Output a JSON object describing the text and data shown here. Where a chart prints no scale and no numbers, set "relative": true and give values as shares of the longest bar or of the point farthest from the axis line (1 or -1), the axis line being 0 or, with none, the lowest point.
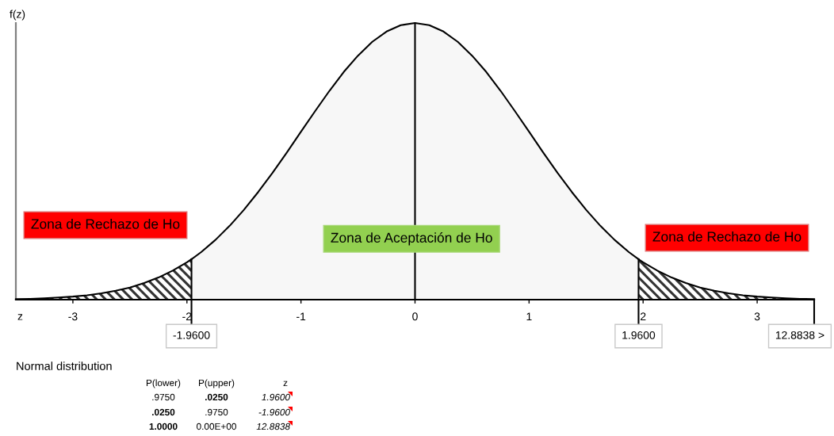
{
  "chart_data": [
    {
      "type": "area",
      "xlabel": "z",
      "ylabel": "f(z)",
      "relative": true,
      "xlim": [
        -3.5,
        3.5
      ],
      "xticks": [
        -3,
        -2,
        -1,
        0,
        1,
        2,
        3
      ],
      "series": [
        {
          "color": "#333333",
          "x": [
            -3.5,
            -3.375,
            -3.25,
            -3.125,
            -3,
            -2.875,
            -2.75,
            -2.625,
            -2.5,
            -2.375,
            -2.25,
            -2.125,
            -2,
            -1.96
          ],
          "values": [
            0.002,
            0.003,
            0.005,
            0.008,
            0.011,
            0.016,
            0.023,
            0.032,
            0.044,
            0.06,
            0.08,
            0.105,
            0.135,
            0.146
          ]
        },
        {
          "color": "#f7f7f7",
          "x": [
            -1.96,
            -1.875,
            -1.75,
            -1.625,
            -1.5,
            -1.375,
            -1.25,
            -1.125,
            -1,
            -0.875,
            -0.75,
            -0.625,
            -0.5,
            -0.375,
            -0.25,
            -0.125,
            0,
            0.125,
            0.25,
            0.375,
            0.5,
            0.625,
            0.75,
            0.875,
            1,
            1.125,
            1.25,
            1.375,
            1.5,
            1.625,
            1.75,
            1.875,
            1.96
          ],
          "values": [
            0.146,
            0.172,
            0.216,
            0.267,
            0.325,
            0.389,
            0.458,
            0.531,
            0.607,
            0.682,
            0.755,
            0.823,
            0.882,
            0.932,
            0.969,
            0.992,
            1,
            0.992,
            0.969,
            0.932,
            0.882,
            0.823,
            0.755,
            0.682,
            0.607,
            0.531,
            0.458,
            0.389,
            0.325,
            0.267,
            0.216,
            0.172,
            0.146
          ]
        },
        {
          "color": "#333333",
          "x": [
            1.96,
            2,
            2.125,
            2.25,
            2.375,
            2.5,
            2.625,
            2.75,
            2.875,
            3,
            3.125,
            3.25,
            3.375,
            3.5
          ],
          "values": [
            0.146,
            0.135,
            0.105,
            0.08,
            0.06,
            0.044,
            0.032,
            0.023,
            0.016,
            0.011,
            0.008,
            0.005,
            0.003,
            0.002
          ]
        }
      ],
      "ref_lines": [
        {
          "axis": "x",
          "value": -1.96,
          "label": "-1.9600"
        },
        {
          "axis": "x",
          "value": 0
        },
        {
          "axis": "x",
          "value": 1.96,
          "label": "1.9600"
        }
      ],
      "annotations": [
        "Zona de Rechazo de Ho",
        {
          "text": "Zona de Aceptación de Ho",
          "x": -0.03,
          "y": 0.22
        },
        "Zona de Rechazo de Ho",
        "12.8838 >"
      ]
    },
    {
      "type": "other",
      "title": "Normal distribution",
      "annotations": [
        "P(lower)",
        "P(upper)",
        "z",
        ".9750",
        ".0250",
        "1.9600",
        ".0250",
        ".9750",
        "-1.9600",
        "1.0000",
        "0.00E+00",
        "12.8838"
      ]
    }
  ]
}
